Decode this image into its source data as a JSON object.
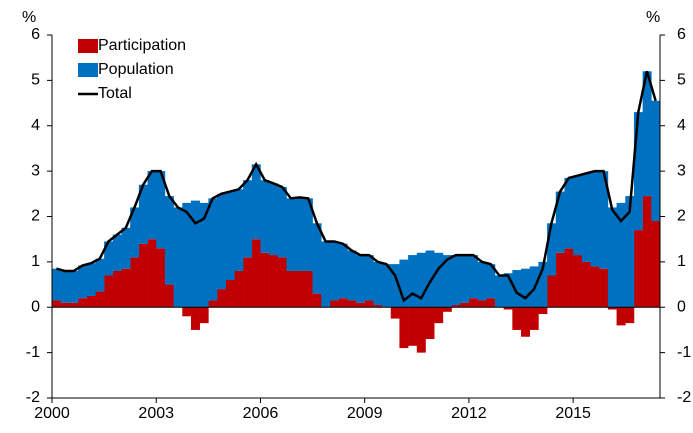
{
  "chart_data": {
    "type": "stacked-bar-line",
    "y_label": "%",
    "y2_label": "%",
    "x": [
      2000,
      2000.25,
      2000.5,
      2000.75,
      2001,
      2001.25,
      2001.5,
      2001.75,
      2002,
      2002.25,
      2002.5,
      2002.75,
      2003,
      2003.25,
      2003.5,
      2003.75,
      2004,
      2004.25,
      2004.5,
      2004.75,
      2005,
      2005.25,
      2005.5,
      2005.75,
      2006,
      2006.25,
      2006.5,
      2006.75,
      2007,
      2007.25,
      2007.5,
      2007.75,
      2008,
      2008.25,
      2008.5,
      2008.75,
      2009,
      2009.25,
      2009.5,
      2009.75,
      2010,
      2010.25,
      2010.5,
      2010.75,
      2011,
      2011.25,
      2011.5,
      2011.75,
      2012,
      2012.25,
      2012.5,
      2012.75,
      2013,
      2013.25,
      2013.5,
      2013.75,
      2014,
      2014.25,
      2014.5,
      2014.75,
      2015,
      2015.25,
      2015.5,
      2015.75,
      2016,
      2016.25,
      2016.5,
      2016.75,
      2017,
      2017.25
    ],
    "series": [
      {
        "name": "Participation",
        "color": "#c00000",
        "kind": "bar",
        "values": [
          0.15,
          0.1,
          0.1,
          0.2,
          0.25,
          0.35,
          0.7,
          0.8,
          0.85,
          1.1,
          1.4,
          1.5,
          1.3,
          0.5,
          0,
          -0.2,
          -0.5,
          -0.35,
          0.15,
          0.4,
          0.6,
          0.8,
          1.1,
          1.5,
          1.2,
          1.15,
          1.1,
          0.8,
          0.8,
          0.8,
          0.3,
          0,
          0.15,
          0.2,
          0.15,
          0.1,
          0.15,
          0.05,
          0,
          -0.25,
          -0.9,
          -0.85,
          -1,
          -0.7,
          -0.35,
          -0.1,
          0.05,
          0.1,
          0.2,
          0.15,
          0.2,
          0,
          -0.05,
          -0.5,
          -0.65,
          -0.5,
          -0.15,
          0.7,
          1.2,
          1.3,
          1.15,
          1,
          0.9,
          0.85,
          -0.05,
          -0.4,
          -0.35,
          1.7,
          2.45,
          1.9
        ]
      },
      {
        "name": "Population",
        "color": "#0070c0",
        "kind": "bar",
        "values": [
          0.7,
          0.7,
          0.7,
          0.72,
          0.72,
          0.72,
          0.75,
          0.8,
          0.9,
          1.1,
          1.3,
          1.5,
          1.7,
          1.95,
          2.2,
          2.3,
          2.35,
          2.3,
          2.25,
          2.1,
          1.95,
          1.8,
          1.7,
          1.65,
          1.6,
          1.58,
          1.55,
          1.6,
          1.62,
          1.6,
          1.55,
          1.45,
          1.3,
          1.2,
          1.1,
          1.05,
          1,
          0.95,
          0.95,
          0.95,
          1.05,
          1.15,
          1.2,
          1.25,
          1.2,
          1.15,
          1.1,
          1.05,
          0.95,
          0.85,
          0.75,
          0.7,
          0.75,
          0.82,
          0.85,
          0.9,
          1,
          1.15,
          1.35,
          1.55,
          1.75,
          1.95,
          2.1,
          2.15,
          2.2,
          2.3,
          2.45,
          2.6,
          2.75,
          2.65
        ]
      },
      {
        "name": "Total",
        "color": "#000000",
        "kind": "line",
        "values": [
          0.85,
          0.8,
          0.8,
          0.92,
          0.97,
          1.07,
          1.45,
          1.6,
          1.75,
          2.2,
          2.7,
          3.0,
          3.0,
          2.45,
          2.2,
          2.1,
          1.85,
          1.95,
          2.4,
          2.5,
          2.55,
          2.6,
          2.8,
          3.15,
          2.8,
          2.73,
          2.65,
          2.4,
          2.42,
          2.4,
          1.85,
          1.45,
          1.45,
          1.4,
          1.25,
          1.15,
          1.15,
          1.0,
          0.95,
          0.7,
          0.15,
          0.3,
          0.2,
          0.55,
          0.85,
          1.05,
          1.15,
          1.15,
          1.15,
          1.0,
          0.95,
          0.7,
          0.7,
          0.32,
          0.2,
          0.4,
          0.85,
          1.85,
          2.55,
          2.85,
          2.9,
          2.95,
          3.0,
          3.0,
          2.15,
          1.9,
          2.1,
          4.3,
          5.2,
          4.55
        ]
      }
    ],
    "xlim": [
      2000,
      2017.5
    ],
    "xticks": [
      2000,
      2003,
      2006,
      2009,
      2012,
      2015
    ],
    "ylim": [
      -2,
      6
    ],
    "yticks": [
      -2,
      -1,
      0,
      1,
      2,
      3,
      4,
      5,
      6
    ],
    "y2lim": [
      -2,
      6
    ],
    "y2ticks": [
      -2,
      -1,
      0,
      1,
      2,
      3,
      4,
      5,
      6
    ],
    "legend": "top-left"
  }
}
